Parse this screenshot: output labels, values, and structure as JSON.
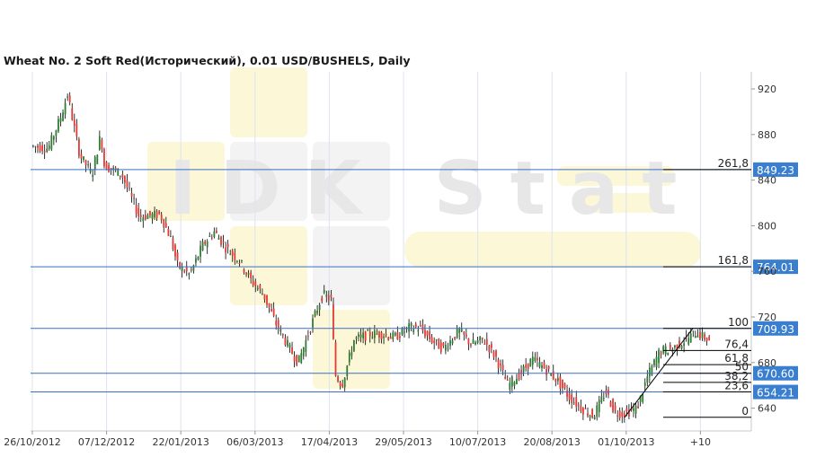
{
  "chart_data": {
    "type": "candlestick",
    "title": "Wheat  No. 2 Soft Red(Исторический), 0.01 USD/BUSHELS, Daily",
    "watermark": "IDK Stat",
    "xlabel": "",
    "ylabel": "",
    "ylim": [
      620,
      935
    ],
    "y_ticks": [
      640,
      680,
      720,
      760,
      800,
      840,
      880,
      920
    ],
    "y_tick_labels": [
      "640",
      "680",
      "720",
      "760",
      "800",
      "840",
      "880",
      "920"
    ],
    "x_ticks": [
      "26/10/2012",
      "07/12/2012",
      "22/01/2013",
      "06/03/2013",
      "17/04/2013",
      "29/05/2013",
      "10/07/2013",
      "20/08/2013",
      "01/10/2013",
      "+10"
    ],
    "price_path": [
      [
        "2012-10-26",
        870
      ],
      [
        "2012-11-05",
        868
      ],
      [
        "2012-11-12",
        895
      ],
      [
        "2012-11-16",
        915
      ],
      [
        "2012-11-23",
        862
      ],
      [
        "2012-11-30",
        845
      ],
      [
        "2012-12-05",
        880
      ],
      [
        "2012-12-07",
        853
      ],
      [
        "2012-12-17",
        845
      ],
      [
        "2012-12-27",
        808
      ],
      [
        "2013-01-08",
        810
      ],
      [
        "2013-01-14",
        789
      ],
      [
        "2013-01-18",
        765
      ],
      [
        "2013-01-25",
        757
      ],
      [
        "2013-02-01",
        782
      ],
      [
        "2013-02-08",
        795
      ],
      [
        "2013-02-15",
        780
      ],
      [
        "2013-02-22",
        770
      ],
      [
        "2013-03-01",
        752
      ],
      [
        "2013-03-08",
        740
      ],
      [
        "2013-03-15",
        715
      ],
      [
        "2013-03-22",
        695
      ],
      [
        "2013-03-28",
        680
      ],
      [
        "2013-04-05",
        715
      ],
      [
        "2013-04-11",
        740
      ],
      [
        "2013-04-16",
        735
      ],
      [
        "2013-04-18",
        670
      ],
      [
        "2013-04-22",
        660
      ],
      [
        "2013-04-29",
        700
      ],
      [
        "2013-05-08",
        705
      ],
      [
        "2013-05-15",
        705
      ],
      [
        "2013-05-22",
        702
      ],
      [
        "2013-05-31",
        711
      ],
      [
        "2013-06-06",
        710
      ],
      [
        "2013-06-12",
        700
      ],
      [
        "2013-06-19",
        692
      ],
      [
        "2013-06-28",
        708
      ],
      [
        "2013-07-05",
        696
      ],
      [
        "2013-07-12",
        700
      ],
      [
        "2013-07-19",
        685
      ],
      [
        "2013-07-26",
        660
      ],
      [
        "2013-08-02",
        670
      ],
      [
        "2013-08-09",
        683
      ],
      [
        "2013-08-16",
        675
      ],
      [
        "2013-08-23",
        665
      ],
      [
        "2013-08-30",
        650
      ],
      [
        "2013-09-06",
        640
      ],
      [
        "2013-09-13",
        633
      ],
      [
        "2013-09-20",
        655
      ],
      [
        "2013-09-25",
        637
      ],
      [
        "2013-09-30",
        635
      ],
      [
        "2013-10-08",
        640
      ],
      [
        "2013-10-14",
        668
      ],
      [
        "2013-10-21",
        690
      ],
      [
        "2013-10-28",
        692
      ],
      [
        "2013-11-05",
        700
      ],
      [
        "2013-11-11",
        707
      ],
      [
        "2013-11-14",
        703
      ],
      [
        "2013-11-18",
        700
      ]
    ],
    "fibonacci": {
      "levels": [
        {
          "label": "261,8",
          "value": 849.23,
          "value_label": "849.23"
        },
        {
          "label": "161,8",
          "value": 764.01,
          "value_label": "764.01"
        },
        {
          "label": "100",
          "value": 709.93,
          "value_label": "709.93"
        },
        {
          "label": "76,4",
          "value": 690.6,
          "value_label": ""
        },
        {
          "label": "61,8",
          "value": 678.2,
          "value_label": ""
        },
        {
          "label": "50",
          "value": 670.6,
          "value_label": "670.60"
        },
        {
          "label": "38,2",
          "value": 662.6,
          "value_label": ""
        },
        {
          "label": "23,6",
          "value": 654.21,
          "value_label": "654.21"
        },
        {
          "label": "0",
          "value": 632,
          "value_label": ""
        }
      ],
      "trend_from": [
        "2013-09-30",
        632
      ],
      "trend_to": [
        "2013-11-08",
        709.93
      ]
    },
    "colors": {
      "up": "#2e7d32",
      "down": "#e53935",
      "wick": "#000000",
      "level_line": "#3a6fc4",
      "level_label_bg": "#3a7fcf",
      "grid": "#dde3ee"
    },
    "grid": true
  }
}
